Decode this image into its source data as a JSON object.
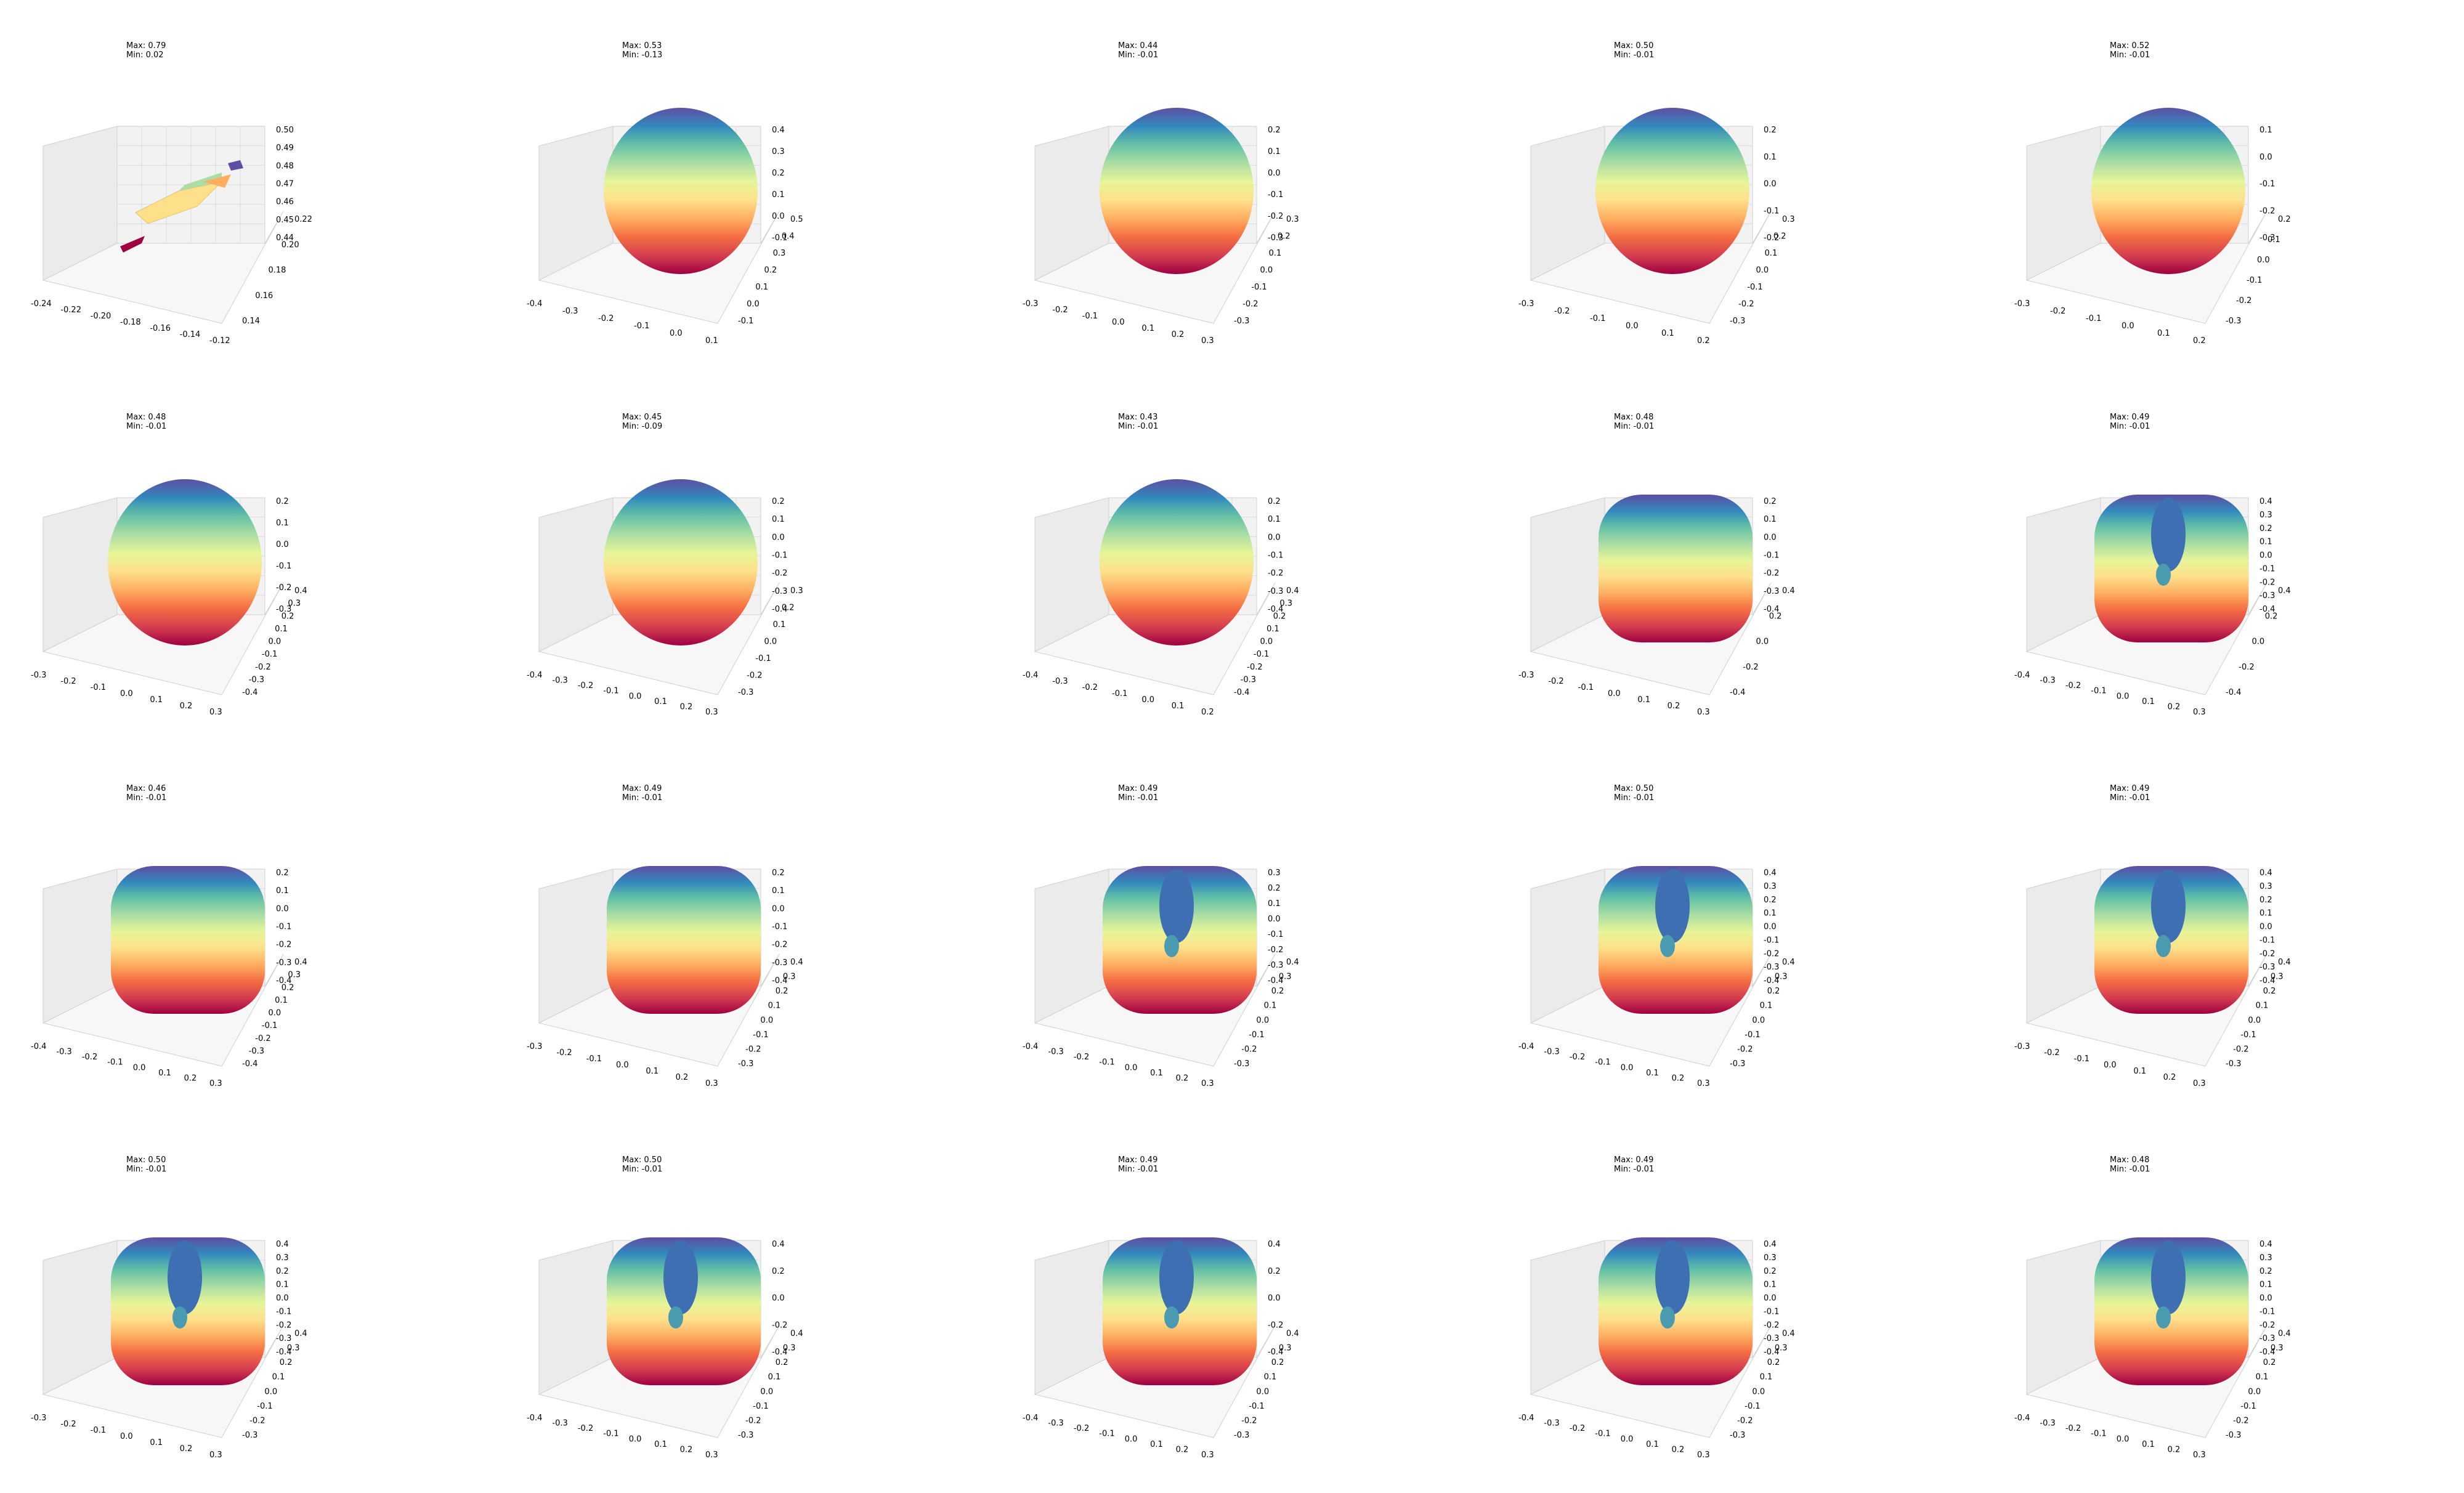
{
  "chart_data": [
    {
      "type": "surface3d",
      "row": 0,
      "col": 0,
      "max": "Max: 0.79",
      "min": "Min: 0.02",
      "shape": "patch",
      "xticks": [
        "-0.24",
        "-0.22",
        "-0.20",
        "-0.18",
        "-0.16",
        "-0.14",
        "-0.12"
      ],
      "yticks": [
        "0.14",
        "0.16",
        "0.18",
        "0.20",
        "0.22"
      ],
      "zticks": [
        "0.44",
        "0.45",
        "0.46",
        "0.47",
        "0.48",
        "0.49",
        "0.50"
      ]
    },
    {
      "type": "surface3d",
      "row": 0,
      "col": 1,
      "max": "Max: 0.53",
      "min": "Min: -0.13",
      "shape": "sphere",
      "xticks": [
        "-0.4",
        "-0.3",
        "-0.2",
        "-0.1",
        "0.0",
        "0.1"
      ],
      "yticks": [
        "-0.1",
        "0.0",
        "0.1",
        "0.2",
        "0.3",
        "0.4",
        "0.5"
      ],
      "zticks": [
        "-0.1",
        "0.0",
        "0.1",
        "0.2",
        "0.3",
        "0.4"
      ]
    },
    {
      "type": "surface3d",
      "row": 0,
      "col": 2,
      "max": "Max: 0.44",
      "min": "Min: -0.01",
      "shape": "sphere",
      "xticks": [
        "-0.3",
        "-0.2",
        "-0.1",
        "0.0",
        "0.1",
        "0.2",
        "0.3"
      ],
      "yticks": [
        "-0.3",
        "-0.2",
        "-0.1",
        "0.0",
        "0.1",
        "0.2",
        "0.3"
      ],
      "zticks": [
        "-0.3",
        "-0.2",
        "-0.1",
        "0.0",
        "0.1",
        "0.2"
      ]
    },
    {
      "type": "surface3d",
      "row": 0,
      "col": 3,
      "max": "Max: 0.50",
      "min": "Min: -0.01",
      "shape": "sphere",
      "xticks": [
        "-0.3",
        "-0.2",
        "-0.1",
        "0.0",
        "0.1",
        "0.2"
      ],
      "yticks": [
        "-0.3",
        "-0.2",
        "-0.1",
        "0.0",
        "0.1",
        "0.2",
        "0.3"
      ],
      "zticks": [
        "-0.2",
        "-0.1",
        "0.0",
        "0.1",
        "0.2"
      ]
    },
    {
      "type": "surface3d",
      "row": 0,
      "col": 4,
      "max": "Max: 0.52",
      "min": "Min: -0.01",
      "shape": "sphere",
      "xticks": [
        "-0.3",
        "-0.2",
        "-0.1",
        "0.0",
        "0.1",
        "0.2"
      ],
      "yticks": [
        "-0.3",
        "-0.2",
        "-0.1",
        "0.0",
        "0.1",
        "0.2"
      ],
      "zticks": [
        "-0.3",
        "-0.2",
        "-0.1",
        "0.0",
        "0.1"
      ]
    },
    {
      "type": "surface3d",
      "row": 1,
      "col": 0,
      "max": "Max: 0.48",
      "min": "Min: -0.01",
      "shape": "sphere",
      "xticks": [
        "-0.3",
        "-0.2",
        "-0.1",
        "0.0",
        "0.1",
        "0.2",
        "0.3"
      ],
      "yticks": [
        "-0.4",
        "-0.3",
        "-0.2",
        "-0.1",
        "0.0",
        "0.1",
        "0.2",
        "0.3",
        "0.4"
      ],
      "zticks": [
        "-0.3",
        "-0.2",
        "-0.1",
        "0.0",
        "0.1",
        "0.2"
      ]
    },
    {
      "type": "surface3d",
      "row": 1,
      "col": 1,
      "max": "Max: 0.45",
      "min": "Min: -0.09",
      "shape": "sphere",
      "xticks": [
        "-0.4",
        "-0.3",
        "-0.2",
        "-0.1",
        "0.0",
        "0.1",
        "0.2",
        "0.3"
      ],
      "yticks": [
        "-0.3",
        "-0.2",
        "-0.1",
        "0.0",
        "0.1",
        "0.2",
        "0.3"
      ],
      "zticks": [
        "-0.4",
        "-0.3",
        "-0.2",
        "-0.1",
        "0.0",
        "0.1",
        "0.2"
      ]
    },
    {
      "type": "surface3d",
      "row": 1,
      "col": 2,
      "max": "Max: 0.43",
      "min": "Min: -0.01",
      "shape": "sphere",
      "xticks": [
        "-0.4",
        "-0.3",
        "-0.2",
        "-0.1",
        "0.0",
        "0.1",
        "0.2"
      ],
      "yticks": [
        "-0.4",
        "-0.3",
        "-0.2",
        "-0.1",
        "0.0",
        "0.1",
        "0.2",
        "0.3",
        "0.4"
      ],
      "zticks": [
        "-0.4",
        "-0.3",
        "-0.2",
        "-0.1",
        "0.0",
        "0.1",
        "0.2"
      ]
    },
    {
      "type": "surface3d",
      "row": 1,
      "col": 3,
      "max": "Max: 0.48",
      "min": "Min: -0.01",
      "shape": "box",
      "xticks": [
        "-0.3",
        "-0.2",
        "-0.1",
        "0.0",
        "0.1",
        "0.2",
        "0.3"
      ],
      "yticks": [
        "-0.4",
        "-0.2",
        "0.0",
        "0.2",
        "0.4"
      ],
      "zticks": [
        "-0.4",
        "-0.3",
        "-0.2",
        "-0.1",
        "0.0",
        "0.1",
        "0.2"
      ]
    },
    {
      "type": "surface3d",
      "row": 1,
      "col": 4,
      "max": "Max: 0.49",
      "min": "Min: -0.01",
      "shape": "blob",
      "xticks": [
        "-0.4",
        "-0.3",
        "-0.2",
        "-0.1",
        "0.0",
        "0.1",
        "0.2",
        "0.3"
      ],
      "yticks": [
        "-0.4",
        "-0.2",
        "0.0",
        "0.2",
        "0.4"
      ],
      "zticks": [
        "-0.4",
        "-0.3",
        "-0.2",
        "-0.1",
        "0.0",
        "0.1",
        "0.2",
        "0.3",
        "0.4"
      ]
    },
    {
      "type": "surface3d",
      "row": 2,
      "col": 0,
      "max": "Max: 0.46",
      "min": "Min: -0.01",
      "shape": "box",
      "xticks": [
        "-0.4",
        "-0.3",
        "-0.2",
        "-0.1",
        "0.0",
        "0.1",
        "0.2",
        "0.3"
      ],
      "yticks": [
        "-0.4",
        "-0.3",
        "-0.2",
        "-0.1",
        "0.0",
        "0.1",
        "0.2",
        "0.3",
        "0.4"
      ],
      "zticks": [
        "-0.4",
        "-0.3",
        "-0.2",
        "-0.1",
        "0.0",
        "0.1",
        "0.2"
      ]
    },
    {
      "type": "surface3d",
      "row": 2,
      "col": 1,
      "max": "Max: 0.49",
      "min": "Min: -0.01",
      "shape": "box",
      "xticks": [
        "-0.3",
        "-0.2",
        "-0.1",
        "0.0",
        "0.1",
        "0.2",
        "0.3"
      ],
      "yticks": [
        "-0.3",
        "-0.2",
        "-0.1",
        "0.0",
        "0.1",
        "0.2",
        "0.3",
        "0.4"
      ],
      "zticks": [
        "-0.4",
        "-0.3",
        "-0.2",
        "-0.1",
        "0.0",
        "0.1",
        "0.2"
      ]
    },
    {
      "type": "surface3d",
      "row": 2,
      "col": 2,
      "max": "Max: 0.49",
      "min": "Min: -0.01",
      "shape": "blob",
      "xticks": [
        "-0.4",
        "-0.3",
        "-0.2",
        "-0.1",
        "0.0",
        "0.1",
        "0.2",
        "0.3"
      ],
      "yticks": [
        "-0.3",
        "-0.2",
        "-0.1",
        "0.0",
        "0.1",
        "0.2",
        "0.3",
        "0.4"
      ],
      "zticks": [
        "-0.4",
        "-0.3",
        "-0.2",
        "-0.1",
        "0.0",
        "0.1",
        "0.2",
        "0.3"
      ]
    },
    {
      "type": "surface3d",
      "row": 2,
      "col": 3,
      "max": "Max: 0.50",
      "min": "Min: -0.01",
      "shape": "blob",
      "xticks": [
        "-0.4",
        "-0.3",
        "-0.2",
        "-0.1",
        "0.0",
        "0.1",
        "0.2",
        "0.3"
      ],
      "yticks": [
        "-0.3",
        "-0.2",
        "-0.1",
        "0.0",
        "0.1",
        "0.2",
        "0.3",
        "0.4"
      ],
      "zticks": [
        "-0.4",
        "-0.3",
        "-0.2",
        "-0.1",
        "0.0",
        "0.1",
        "0.2",
        "0.3",
        "0.4"
      ]
    },
    {
      "type": "surface3d",
      "row": 2,
      "col": 4,
      "max": "Max: 0.49",
      "min": "Min: -0.01",
      "shape": "blob",
      "xticks": [
        "-0.3",
        "-0.2",
        "-0.1",
        "0.0",
        "0.1",
        "0.2",
        "0.3"
      ],
      "yticks": [
        "-0.3",
        "-0.2",
        "-0.1",
        "0.0",
        "0.1",
        "0.2",
        "0.3",
        "0.4"
      ],
      "zticks": [
        "-0.4",
        "-0.3",
        "-0.2",
        "-0.1",
        "0.0",
        "0.1",
        "0.2",
        "0.3",
        "0.4"
      ]
    },
    {
      "type": "surface3d",
      "row": 3,
      "col": 0,
      "max": "Max: 0.50",
      "min": "Min: -0.01",
      "shape": "blob",
      "xticks": [
        "-0.3",
        "-0.2",
        "-0.1",
        "0.0",
        "0.1",
        "0.2",
        "0.3"
      ],
      "yticks": [
        "-0.3",
        "-0.2",
        "-0.1",
        "0.0",
        "0.1",
        "0.2",
        "0.3",
        "0.4"
      ],
      "zticks": [
        "-0.4",
        "-0.3",
        "-0.2",
        "-0.1",
        "0.0",
        "0.1",
        "0.2",
        "0.3",
        "0.4"
      ]
    },
    {
      "type": "surface3d",
      "row": 3,
      "col": 1,
      "max": "Max: 0.50",
      "min": "Min: -0.01",
      "shape": "blob",
      "xticks": [
        "-0.4",
        "-0.3",
        "-0.2",
        "-0.1",
        "0.0",
        "0.1",
        "0.2",
        "0.3"
      ],
      "yticks": [
        "-0.3",
        "-0.2",
        "-0.1",
        "0.0",
        "0.1",
        "0.2",
        "0.3",
        "0.4"
      ],
      "zticks": [
        "-0.4",
        "-0.2",
        "0.0",
        "0.2",
        "0.4"
      ]
    },
    {
      "type": "surface3d",
      "row": 3,
      "col": 2,
      "max": "Max: 0.49",
      "min": "Min: -0.01",
      "shape": "blob",
      "xticks": [
        "-0.4",
        "-0.3",
        "-0.2",
        "-0.1",
        "0.0",
        "0.1",
        "0.2",
        "0.3"
      ],
      "yticks": [
        "-0.3",
        "-0.2",
        "-0.1",
        "0.0",
        "0.1",
        "0.2",
        "0.3",
        "0.4"
      ],
      "zticks": [
        "-0.4",
        "-0.2",
        "0.0",
        "0.2",
        "0.4"
      ]
    },
    {
      "type": "surface3d",
      "row": 3,
      "col": 3,
      "max": "Max: 0.49",
      "min": "Min: -0.01",
      "shape": "blob",
      "xticks": [
        "-0.4",
        "-0.3",
        "-0.2",
        "-0.1",
        "0.0",
        "0.1",
        "0.2",
        "0.3"
      ],
      "yticks": [
        "-0.3",
        "-0.2",
        "-0.1",
        "0.0",
        "0.1",
        "0.2",
        "0.3",
        "0.4"
      ],
      "zticks": [
        "-0.4",
        "-0.3",
        "-0.2",
        "-0.1",
        "0.0",
        "0.1",
        "0.2",
        "0.3",
        "0.4"
      ]
    },
    {
      "type": "surface3d",
      "row": 3,
      "col": 4,
      "max": "Max: 0.48",
      "min": "Min: -0.01",
      "shape": "blob",
      "xticks": [
        "-0.4",
        "-0.3",
        "-0.2",
        "-0.1",
        "0.0",
        "0.1",
        "0.2",
        "0.3"
      ],
      "yticks": [
        "-0.3",
        "-0.2",
        "-0.1",
        "0.0",
        "0.1",
        "0.2",
        "0.3",
        "0.4"
      ],
      "zticks": [
        "-0.4",
        "-0.3",
        "-0.2",
        "-0.1",
        "0.0",
        "0.1",
        "0.2",
        "0.3",
        "0.4"
      ]
    }
  ],
  "colormap": [
    "#5e4fa2",
    "#3288bd",
    "#66c2a5",
    "#abdda4",
    "#e6f598",
    "#fee08b",
    "#fdae61",
    "#f46d43",
    "#d53e4f",
    "#9e0142"
  ]
}
